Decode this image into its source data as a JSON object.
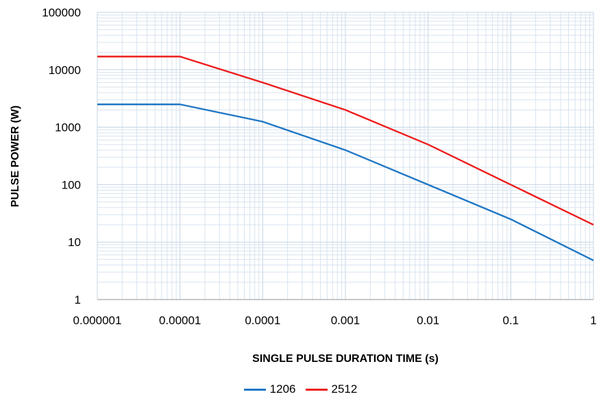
{
  "chart_data": {
    "type": "line",
    "xlabel": "SINGLE PULSE DURATION TIME (s)",
    "ylabel": "PULSE POWER (W)",
    "x_scale": "log",
    "y_scale": "log",
    "xlim": [
      1e-06,
      1
    ],
    "ylim": [
      1,
      100000
    ],
    "x_ticks": [
      "0.000001",
      "0.00001",
      "0.0001",
      "0.001",
      "0.01",
      "0.1",
      "1"
    ],
    "y_ticks": [
      "1",
      "10",
      "100",
      "1000",
      "10000",
      "100000"
    ],
    "grid": true,
    "legend_position": "bottom",
    "series": [
      {
        "name": "1206",
        "color": "#1f77c4",
        "points": [
          [
            1e-06,
            2500
          ],
          [
            1e-05,
            2500
          ],
          [
            0.0001,
            1250
          ],
          [
            0.001,
            400
          ],
          [
            0.01,
            100
          ],
          [
            0.1,
            25
          ],
          [
            1,
            4.8
          ]
        ]
      },
      {
        "name": "2512",
        "color": "#ee1c1c",
        "points": [
          [
            1e-06,
            17000
          ],
          [
            1e-05,
            17000
          ],
          [
            0.0001,
            6000
          ],
          [
            0.001,
            2000
          ],
          [
            0.01,
            500
          ],
          [
            0.1,
            100
          ],
          [
            1,
            20
          ]
        ]
      }
    ]
  }
}
